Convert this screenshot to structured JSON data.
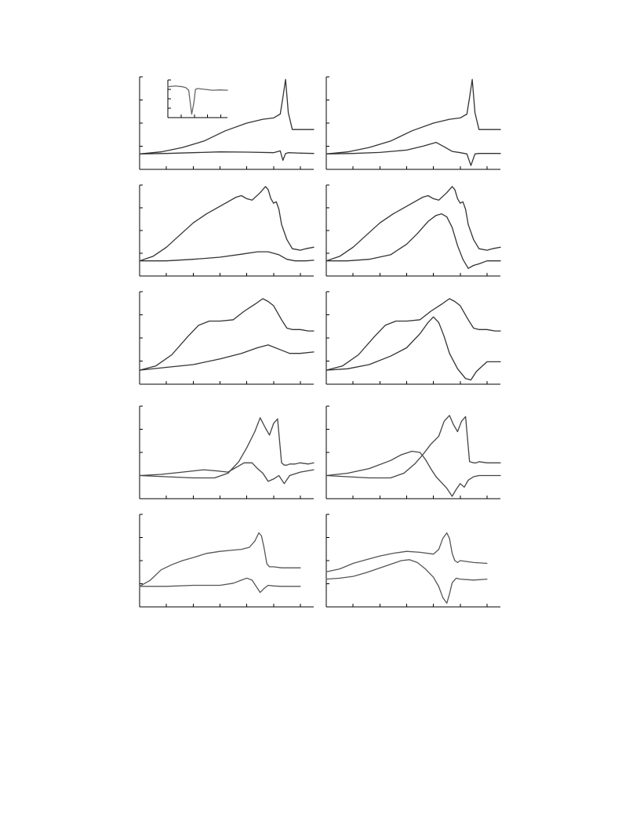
{
  "chart_data": [
    {
      "type": "line",
      "panel": "row1-left",
      "grid": false,
      "xlim": [
        0,
        6.5
      ],
      "ylim": [
        -0.6,
        3.0
      ],
      "series": [
        {
          "color": "#333333",
          "x": [
            0,
            0.8,
            1.6,
            2.4,
            3.2,
            4.0,
            4.6,
            5.0,
            5.25,
            5.35,
            5.45,
            5.55,
            5.7,
            6.0,
            6.5
          ],
          "y": [
            0.0,
            0.08,
            0.25,
            0.5,
            0.9,
            1.2,
            1.35,
            1.4,
            1.55,
            2.2,
            2.9,
            1.6,
            0.95,
            0.95,
            0.95
          ]
        },
        {
          "color": "#333333",
          "x": [
            0,
            1.0,
            2.0,
            3.0,
            4.0,
            5.0,
            5.25,
            5.35,
            5.45,
            5.55,
            6.0,
            6.5
          ],
          "y": [
            0.0,
            0.02,
            0.05,
            0.08,
            0.07,
            0.05,
            0.12,
            -0.25,
            0.02,
            0.05,
            0.03,
            0.02
          ]
        }
      ],
      "inset": {
        "type": "line",
        "xlim": [
          0,
          4
        ],
        "ylim": [
          -1.5,
          0.7
        ],
        "series": [
          {
            "color": "#666666",
            "x": [
              0,
              0.5,
              1.0,
              1.2,
              1.4,
              1.5,
              1.6,
              1.75,
              1.85,
              2.0,
              2.5,
              3.0,
              3.5,
              4.0
            ],
            "y": [
              0.3,
              0.35,
              0.3,
              0.25,
              0.1,
              -0.6,
              -1.3,
              -0.6,
              0.15,
              0.2,
              0.15,
              0.1,
              0.12,
              0.1
            ]
          }
        ]
      }
    },
    {
      "type": "line",
      "panel": "row1-right",
      "grid": false,
      "xlim": [
        0,
        6.5
      ],
      "ylim": [
        -0.6,
        3.0
      ],
      "series": [
        {
          "color": "#333333",
          "x": [
            0,
            0.8,
            1.6,
            2.4,
            3.2,
            4.0,
            4.6,
            5.0,
            5.25,
            5.35,
            5.45,
            5.55,
            5.7,
            6.0,
            6.5
          ],
          "y": [
            0.0,
            0.08,
            0.25,
            0.5,
            0.9,
            1.2,
            1.35,
            1.4,
            1.55,
            2.2,
            2.9,
            1.6,
            0.95,
            0.95,
            0.95
          ]
        },
        {
          "color": "#333333",
          "x": [
            0,
            1.0,
            2.0,
            3.0,
            3.6,
            4.1,
            4.4,
            4.7,
            5.0,
            5.25,
            5.4,
            5.55,
            5.7,
            6.0,
            6.5
          ],
          "y": [
            0.0,
            0.02,
            0.06,
            0.15,
            0.3,
            0.45,
            0.28,
            0.1,
            0.05,
            0.0,
            -0.45,
            0.0,
            0.02,
            0.02,
            0.02
          ]
        }
      ]
    },
    {
      "type": "line",
      "panel": "row2-left",
      "grid": false,
      "xlim": [
        0,
        6.5
      ],
      "ylim": [
        -0.5,
        2.5
      ],
      "series": [
        {
          "color": "#333333",
          "x": [
            0,
            0.5,
            1.0,
            1.5,
            2.0,
            2.5,
            3.0,
            3.3,
            3.6,
            3.8,
            4.0,
            4.2,
            4.5,
            4.7,
            4.8,
            4.9,
            5.0,
            5.1,
            5.2,
            5.3,
            5.5,
            5.7,
            6.0,
            6.2,
            6.5
          ],
          "y": [
            0.0,
            0.15,
            0.45,
            0.85,
            1.25,
            1.55,
            1.8,
            1.95,
            2.1,
            2.15,
            2.05,
            2.0,
            2.25,
            2.45,
            2.35,
            2.05,
            1.9,
            1.95,
            1.7,
            1.2,
            0.7,
            0.4,
            0.35,
            0.4,
            0.45
          ]
        },
        {
          "color": "#333333",
          "x": [
            0,
            1.0,
            2.0,
            3.0,
            3.8,
            4.4,
            4.8,
            5.2,
            5.5,
            5.8,
            6.2,
            6.5
          ],
          "y": [
            0.0,
            0.0,
            0.05,
            0.12,
            0.22,
            0.3,
            0.3,
            0.2,
            0.05,
            0.0,
            0.0,
            0.02
          ]
        }
      ]
    },
    {
      "type": "line",
      "panel": "row2-right",
      "grid": false,
      "xlim": [
        0,
        6.5
      ],
      "ylim": [
        -0.5,
        2.5
      ],
      "series": [
        {
          "color": "#333333",
          "x": [
            0,
            0.5,
            1.0,
            1.5,
            2.0,
            2.5,
            3.0,
            3.3,
            3.6,
            3.8,
            4.0,
            4.2,
            4.5,
            4.7,
            4.8,
            4.9,
            5.0,
            5.1,
            5.2,
            5.3,
            5.5,
            5.7,
            6.0,
            6.2,
            6.5
          ],
          "y": [
            0.0,
            0.15,
            0.45,
            0.85,
            1.25,
            1.55,
            1.8,
            1.95,
            2.1,
            2.15,
            2.05,
            2.0,
            2.25,
            2.45,
            2.35,
            2.05,
            1.9,
            1.95,
            1.7,
            1.2,
            0.7,
            0.4,
            0.35,
            0.4,
            0.45
          ]
        },
        {
          "color": "#333333",
          "x": [
            0,
            0.8,
            1.6,
            2.4,
            3.0,
            3.4,
            3.8,
            4.1,
            4.3,
            4.5,
            4.7,
            4.9,
            5.1,
            5.3,
            5.5,
            5.7,
            6.0,
            6.5
          ],
          "y": [
            0.0,
            0.0,
            0.05,
            0.2,
            0.55,
            0.9,
            1.3,
            1.5,
            1.55,
            1.45,
            1.1,
            0.5,
            0.05,
            -0.25,
            -0.15,
            -0.1,
            0.0,
            0.0
          ]
        }
      ]
    },
    {
      "type": "line",
      "panel": "row3-left",
      "grid": false,
      "xlim": [
        0,
        6.5
      ],
      "ylim": [
        -0.5,
        2.8
      ],
      "series": [
        {
          "color": "#333333",
          "x": [
            0,
            0.6,
            1.2,
            1.8,
            2.2,
            2.6,
            3.0,
            3.5,
            3.9,
            4.3,
            4.6,
            4.8,
            5.0,
            5.3,
            5.5,
            5.7,
            6.0,
            6.3,
            6.5
          ],
          "y": [
            0.0,
            0.15,
            0.55,
            1.2,
            1.6,
            1.75,
            1.75,
            1.8,
            2.1,
            2.35,
            2.55,
            2.45,
            2.3,
            1.8,
            1.5,
            1.45,
            1.45,
            1.4,
            1.4
          ]
        },
        {
          "color": "#333333",
          "x": [
            0,
            1.0,
            2.0,
            3.0,
            3.8,
            4.4,
            4.8,
            5.2,
            5.6,
            6.0,
            6.5
          ],
          "y": [
            0.0,
            0.1,
            0.2,
            0.4,
            0.6,
            0.8,
            0.9,
            0.75,
            0.6,
            0.6,
            0.65
          ]
        }
      ]
    },
    {
      "type": "line",
      "panel": "row3-right",
      "grid": false,
      "xlim": [
        0,
        6.5
      ],
      "ylim": [
        -0.5,
        2.8
      ],
      "series": [
        {
          "color": "#333333",
          "x": [
            0,
            0.6,
            1.2,
            1.8,
            2.2,
            2.6,
            3.0,
            3.5,
            3.9,
            4.3,
            4.6,
            4.8,
            5.0,
            5.3,
            5.5,
            5.7,
            6.0,
            6.3,
            6.5
          ],
          "y": [
            0.0,
            0.15,
            0.55,
            1.2,
            1.6,
            1.75,
            1.75,
            1.8,
            2.1,
            2.35,
            2.55,
            2.45,
            2.3,
            1.8,
            1.5,
            1.45,
            1.45,
            1.4,
            1.4
          ]
        },
        {
          "color": "#333333",
          "x": [
            0,
            0.8,
            1.6,
            2.4,
            3.0,
            3.5,
            3.8,
            4.0,
            4.2,
            4.4,
            4.6,
            4.9,
            5.2,
            5.4,
            5.6,
            6.0,
            6.5
          ],
          "y": [
            0.0,
            0.05,
            0.2,
            0.5,
            0.8,
            1.3,
            1.7,
            1.9,
            1.7,
            1.2,
            0.6,
            0.05,
            -0.3,
            -0.35,
            -0.05,
            0.3,
            0.3
          ]
        }
      ]
    },
    {
      "type": "line",
      "panel": "row4-left",
      "grid": false,
      "xlim": [
        0,
        6.5
      ],
      "ylim": [
        -1.0,
        3.0
      ],
      "series": [
        {
          "color": "#444444",
          "x": [
            0,
            1.0,
            2.0,
            2.8,
            3.3,
            3.7,
            4.0,
            4.3,
            4.5,
            4.7,
            4.85,
            5.0,
            5.15,
            5.3,
            5.4,
            5.5,
            5.6,
            5.8,
            6.0,
            6.3,
            6.5
          ],
          "y": [
            0.0,
            -0.05,
            -0.1,
            -0.1,
            0.1,
            0.6,
            1.2,
            1.9,
            2.5,
            2.05,
            1.75,
            2.25,
            2.45,
            0.55,
            0.45,
            0.45,
            0.5,
            0.5,
            0.55,
            0.5,
            0.55
          ]
        },
        {
          "color": "#444444",
          "x": [
            0,
            0.8,
            1.6,
            2.4,
            2.9,
            3.3,
            3.6,
            3.9,
            4.2,
            4.4,
            4.6,
            4.8,
            5.0,
            5.2,
            5.4,
            5.6,
            6.0,
            6.5
          ],
          "y": [
            0.0,
            0.05,
            0.15,
            0.25,
            0.2,
            0.15,
            0.35,
            0.55,
            0.55,
            0.3,
            0.1,
            -0.25,
            -0.15,
            0.0,
            -0.35,
            0.0,
            0.15,
            0.25
          ]
        }
      ]
    },
    {
      "type": "line",
      "panel": "row4-right",
      "grid": false,
      "xlim": [
        0,
        6.5
      ],
      "ylim": [
        -1.0,
        3.0
      ],
      "series": [
        {
          "color": "#444444",
          "x": [
            0,
            0.8,
            1.6,
            2.4,
            2.9,
            3.3,
            3.6,
            3.9,
            4.2,
            4.4,
            4.6,
            4.75,
            4.9,
            5.05,
            5.2,
            5.35,
            5.5,
            5.6,
            5.7,
            6.0,
            6.5
          ],
          "y": [
            0.0,
            -0.05,
            -0.1,
            -0.1,
            0.1,
            0.5,
            0.9,
            1.35,
            1.7,
            2.35,
            2.6,
            2.2,
            1.9,
            2.35,
            2.55,
            0.6,
            0.55,
            0.55,
            0.6,
            0.55,
            0.55
          ]
        },
        {
          "color": "#444444",
          "x": [
            0,
            0.8,
            1.6,
            2.4,
            2.8,
            3.2,
            3.5,
            3.7,
            3.9,
            4.1,
            4.3,
            4.5,
            4.7,
            4.85,
            5.0,
            5.15,
            5.3,
            5.5,
            5.7,
            6.0,
            6.5
          ],
          "y": [
            0.0,
            0.1,
            0.3,
            0.65,
            0.9,
            1.05,
            1.0,
            0.7,
            0.3,
            -0.05,
            -0.3,
            -0.55,
            -0.9,
            -0.6,
            -0.35,
            -0.5,
            -0.2,
            -0.05,
            0.0,
            0.0,
            0.0
          ]
        }
      ]
    },
    {
      "type": "line",
      "panel": "row5-left",
      "grid": false,
      "xlim": [
        0,
        6.5
      ],
      "ylim": [
        -1.0,
        3.5
      ],
      "series": [
        {
          "color": "#555555",
          "x": [
            0,
            0.4,
            0.8,
            1.2,
            1.6,
            2.0,
            2.5,
            3.0,
            3.4,
            3.8,
            4.1,
            4.3,
            4.45,
            4.55,
            4.65,
            4.75,
            4.85,
            5.0,
            5.3,
            5.7,
            6.0
          ],
          "y": [
            0.0,
            0.3,
            0.8,
            1.05,
            1.25,
            1.4,
            1.6,
            1.7,
            1.75,
            1.8,
            1.9,
            2.2,
            2.6,
            2.45,
            1.85,
            1.1,
            0.95,
            0.95,
            0.9,
            0.9,
            0.9
          ]
        },
        {
          "color": "#555555",
          "x": [
            0,
            1.0,
            2.0,
            3.0,
            3.5,
            3.8,
            4.0,
            4.2,
            4.35,
            4.5,
            4.65,
            4.8,
            5.0,
            5.3,
            5.7,
            6.0
          ],
          "y": [
            0.0,
            0.0,
            0.05,
            0.05,
            0.15,
            0.3,
            0.4,
            0.3,
            0.0,
            -0.3,
            -0.1,
            0.05,
            0.02,
            0.0,
            0.0,
            0.0
          ]
        }
      ]
    },
    {
      "type": "line",
      "panel": "row5-right",
      "grid": false,
      "xlim": [
        0,
        6.5
      ],
      "ylim": [
        -1.5,
        3.5
      ],
      "series": [
        {
          "color": "#555555",
          "x": [
            0,
            0.5,
            1.0,
            1.5,
            2.0,
            2.5,
            3.0,
            3.5,
            4.0,
            4.2,
            4.35,
            4.5,
            4.6,
            4.7,
            4.8,
            4.9,
            5.0,
            5.5,
            6.0
          ],
          "y": [
            0.4,
            0.55,
            0.85,
            1.05,
            1.25,
            1.4,
            1.5,
            1.45,
            1.35,
            1.6,
            2.2,
            2.5,
            2.2,
            1.4,
            1.0,
            0.9,
            1.0,
            0.9,
            0.85
          ]
        },
        {
          "color": "#555555",
          "x": [
            0,
            0.5,
            1.0,
            1.5,
            2.0,
            2.5,
            2.8,
            3.1,
            3.4,
            3.7,
            4.0,
            4.2,
            4.35,
            4.5,
            4.6,
            4.7,
            4.85,
            5.0,
            5.5,
            6.0
          ],
          "y": [
            0.0,
            0.05,
            0.15,
            0.35,
            0.6,
            0.85,
            1.0,
            1.05,
            0.9,
            0.55,
            0.1,
            -0.4,
            -1.0,
            -1.3,
            -0.8,
            -0.2,
            0.05,
            0.0,
            -0.05,
            0.0
          ]
        }
      ]
    }
  ]
}
